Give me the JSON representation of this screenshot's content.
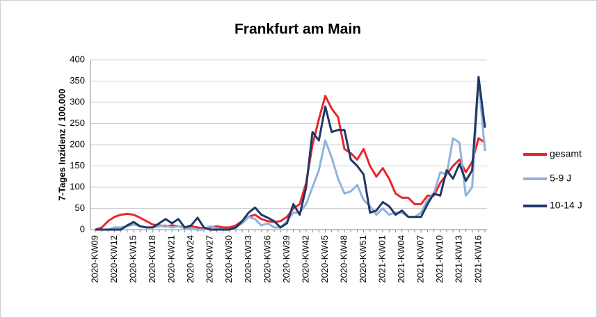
{
  "chart_data": {
    "type": "line",
    "title": "Frankfurt am Main",
    "y_label": "7-Tages Inzidenz / 100.000",
    "categories": [
      "2020-KW09",
      null,
      null,
      "2020-KW12",
      null,
      null,
      "2020-KW15",
      null,
      null,
      "2020-KW18",
      null,
      null,
      "2020-KW21",
      null,
      null,
      "2020-KW24",
      null,
      null,
      "2020-KW27",
      null,
      null,
      "2020-KW30",
      null,
      null,
      "2020-KW33",
      null,
      null,
      "2020-KW36",
      null,
      null,
      "2020-KW39",
      null,
      null,
      "2020-KW42",
      null,
      null,
      "2020-KW45",
      null,
      null,
      "2020-KW48",
      null,
      null,
      "2020-KW51",
      null,
      null,
      "2021-KW01",
      null,
      null,
      "2021-KW04",
      null,
      null,
      "2021-KW07",
      null,
      null,
      "2021-KW10",
      null,
      null,
      "2021-KW13",
      null,
      null,
      "2021-KW16",
      null
    ],
    "series": [
      {
        "name": "gesamt",
        "color": "#e8272a",
        "values": [
          0,
          5,
          20,
          30,
          35,
          37,
          35,
          28,
          20,
          12,
          10,
          8,
          10,
          8,
          5,
          8,
          5,
          3,
          5,
          8,
          5,
          5,
          10,
          20,
          30,
          35,
          25,
          20,
          18,
          20,
          30,
          50,
          60,
          110,
          200,
          260,
          315,
          285,
          265,
          190,
          180,
          165,
          190,
          150,
          125,
          145,
          120,
          85,
          75,
          75,
          60,
          60,
          80,
          80,
          110,
          130,
          150,
          165,
          135,
          160,
          215,
          205
        ]
      },
      {
        "name": "5-9 J",
        "color": "#8fb3dc",
        "values": [
          0,
          0,
          0,
          5,
          5,
          8,
          12,
          8,
          5,
          5,
          8,
          10,
          5,
          8,
          3,
          2,
          0,
          0,
          8,
          3,
          0,
          0,
          5,
          15,
          30,
          25,
          10,
          15,
          5,
          5,
          20,
          40,
          40,
          60,
          100,
          140,
          210,
          170,
          120,
          85,
          90,
          105,
          70,
          55,
          35,
          50,
          35,
          40,
          40,
          30,
          30,
          40,
          70,
          85,
          135,
          130,
          215,
          205,
          80,
          100,
          350,
          185
        ]
      },
      {
        "name": "10-14 J",
        "color": "#1f3864",
        "values": [
          0,
          0,
          0,
          0,
          0,
          10,
          18,
          8,
          5,
          5,
          15,
          25,
          15,
          25,
          5,
          10,
          28,
          5,
          0,
          0,
          0,
          0,
          5,
          20,
          40,
          52,
          35,
          28,
          20,
          5,
          15,
          60,
          35,
          100,
          230,
          210,
          290,
          230,
          235,
          235,
          165,
          150,
          130,
          40,
          45,
          65,
          55,
          35,
          45,
          30,
          30,
          30,
          60,
          85,
          80,
          140,
          120,
          155,
          115,
          140,
          360,
          240
        ]
      }
    ],
    "ylim": [
      0,
      400
    ],
    "yticks": [
      0,
      50,
      100,
      150,
      200,
      250,
      300,
      350,
      400
    ],
    "grid": true,
    "legend": "right"
  }
}
